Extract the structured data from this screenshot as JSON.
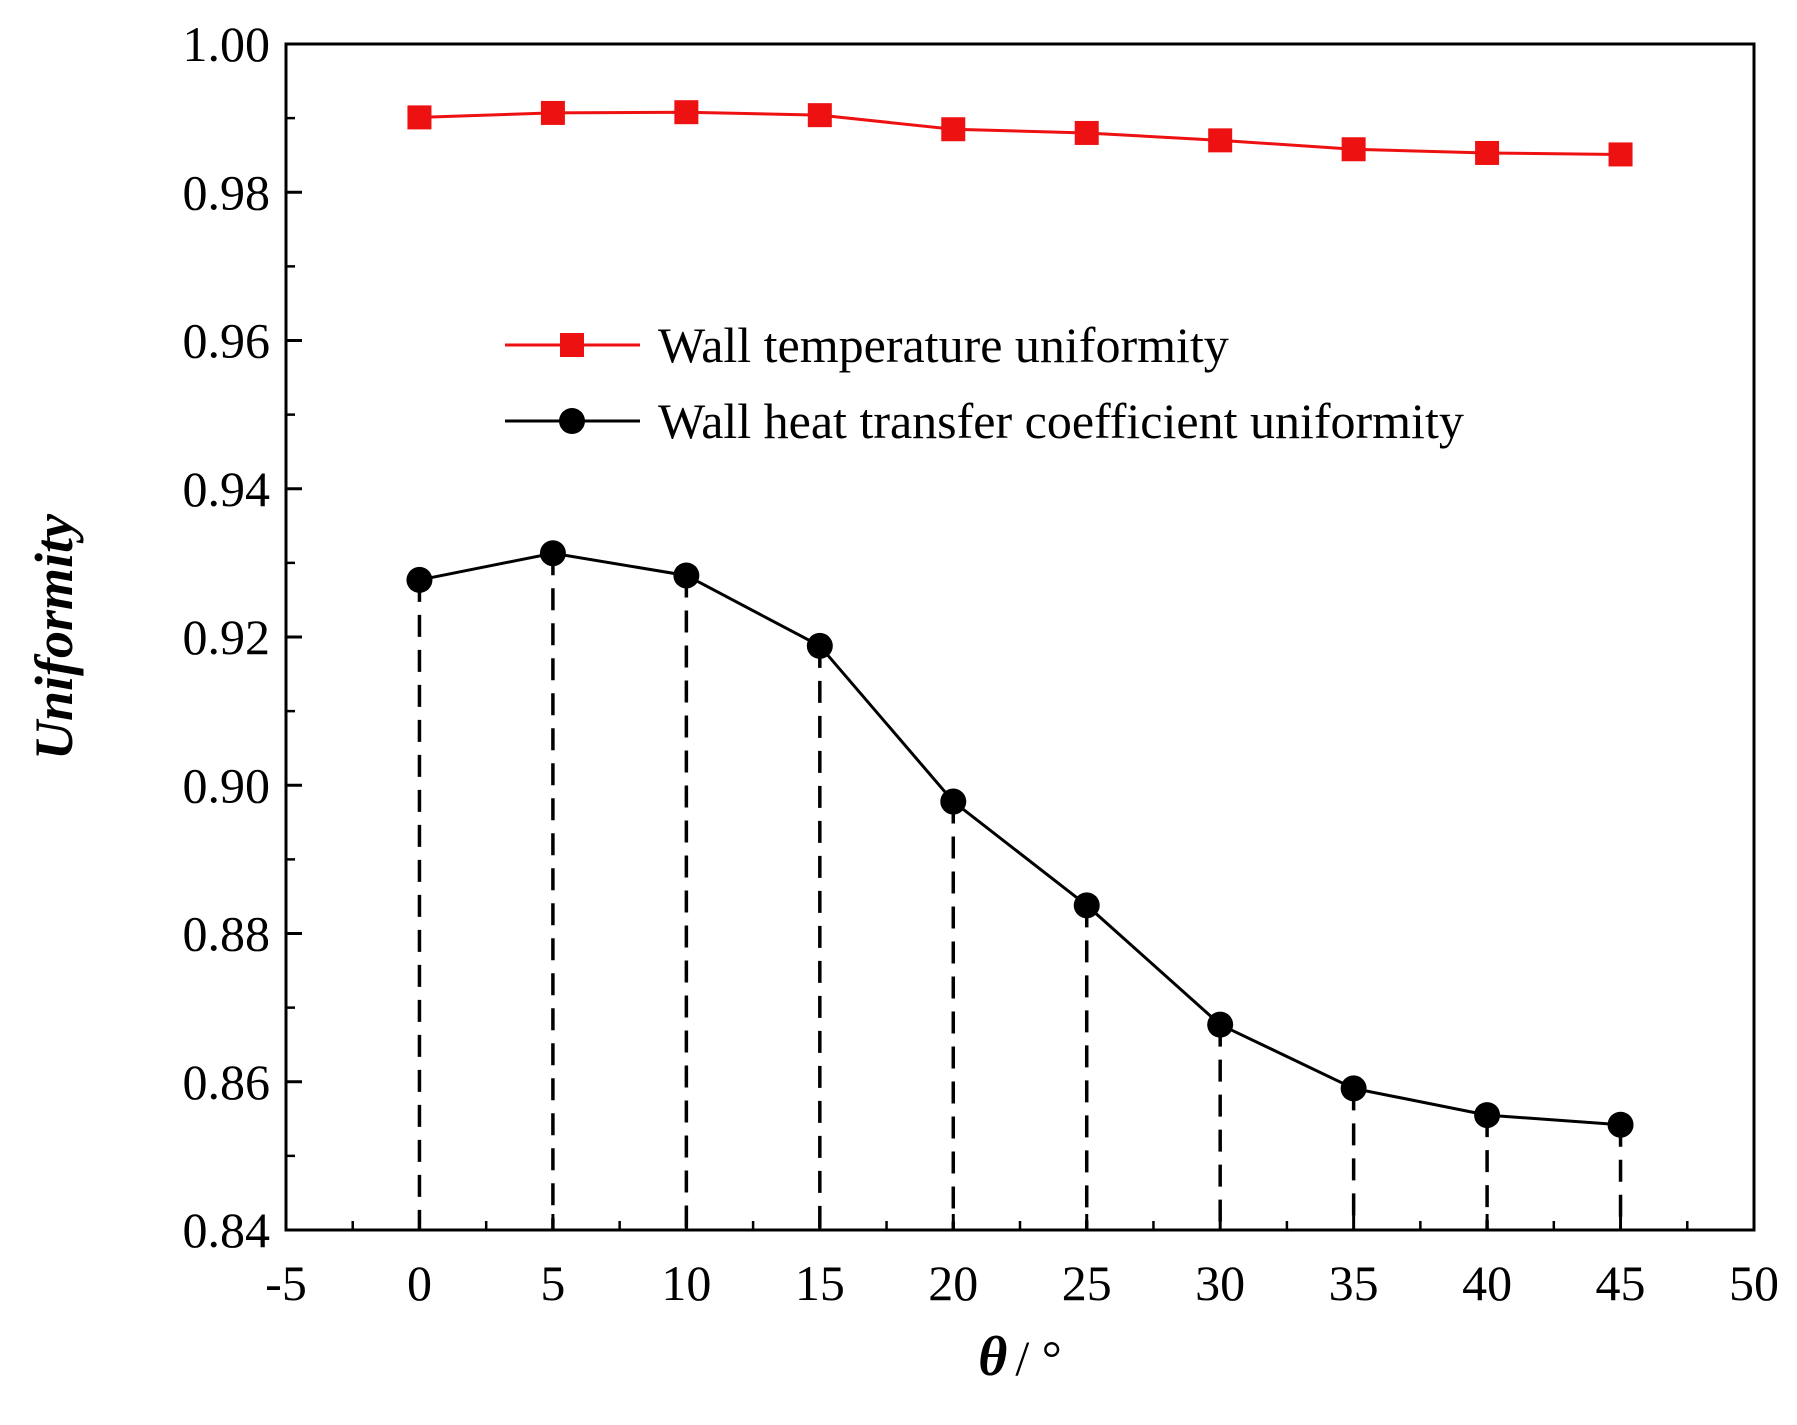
{
  "chart_data": {
    "type": "line",
    "title": "",
    "xlabel": "θ / °",
    "xlabel_symbol": "θ",
    "xlabel_unit": "/ °",
    "ylabel": "Uniformity",
    "xlim": [
      -5,
      50
    ],
    "ylim": [
      0.84,
      1.0
    ],
    "x_ticks": [
      -5,
      0,
      5,
      10,
      15,
      20,
      25,
      30,
      35,
      40,
      45,
      50
    ],
    "x_tick_labels": [
      "-5",
      "0",
      "5",
      "10",
      "15",
      "20",
      "25",
      "30",
      "35",
      "40",
      "45",
      "50"
    ],
    "y_ticks": [
      0.84,
      0.86,
      0.88,
      0.9,
      0.92,
      0.94,
      0.96,
      0.98,
      1.0
    ],
    "y_tick_labels": [
      "0.84",
      "0.86",
      "0.88",
      "0.90",
      "0.92",
      "0.94",
      "0.96",
      "0.98",
      "1.00"
    ],
    "grid": false,
    "legend_position": "upper-middle",
    "x": [
      0,
      5,
      10,
      15,
      20,
      25,
      30,
      35,
      40,
      45
    ],
    "series": [
      {
        "name": "Wall temperature uniformity",
        "marker": "square",
        "color": "#ee1111",
        "values": [
          0.9901,
          0.9907,
          0.9908,
          0.9904,
          0.9885,
          0.988,
          0.987,
          0.9858,
          0.9853,
          0.9851
        ]
      },
      {
        "name": "Wall heat transfer coefficient uniformity",
        "marker": "circle",
        "color": "#000000",
        "drop_lines": true,
        "values": [
          0.9277,
          0.9313,
          0.9283,
          0.9188,
          0.8978,
          0.8838,
          0.8677,
          0.8591,
          0.8555,
          0.8542
        ]
      }
    ]
  }
}
